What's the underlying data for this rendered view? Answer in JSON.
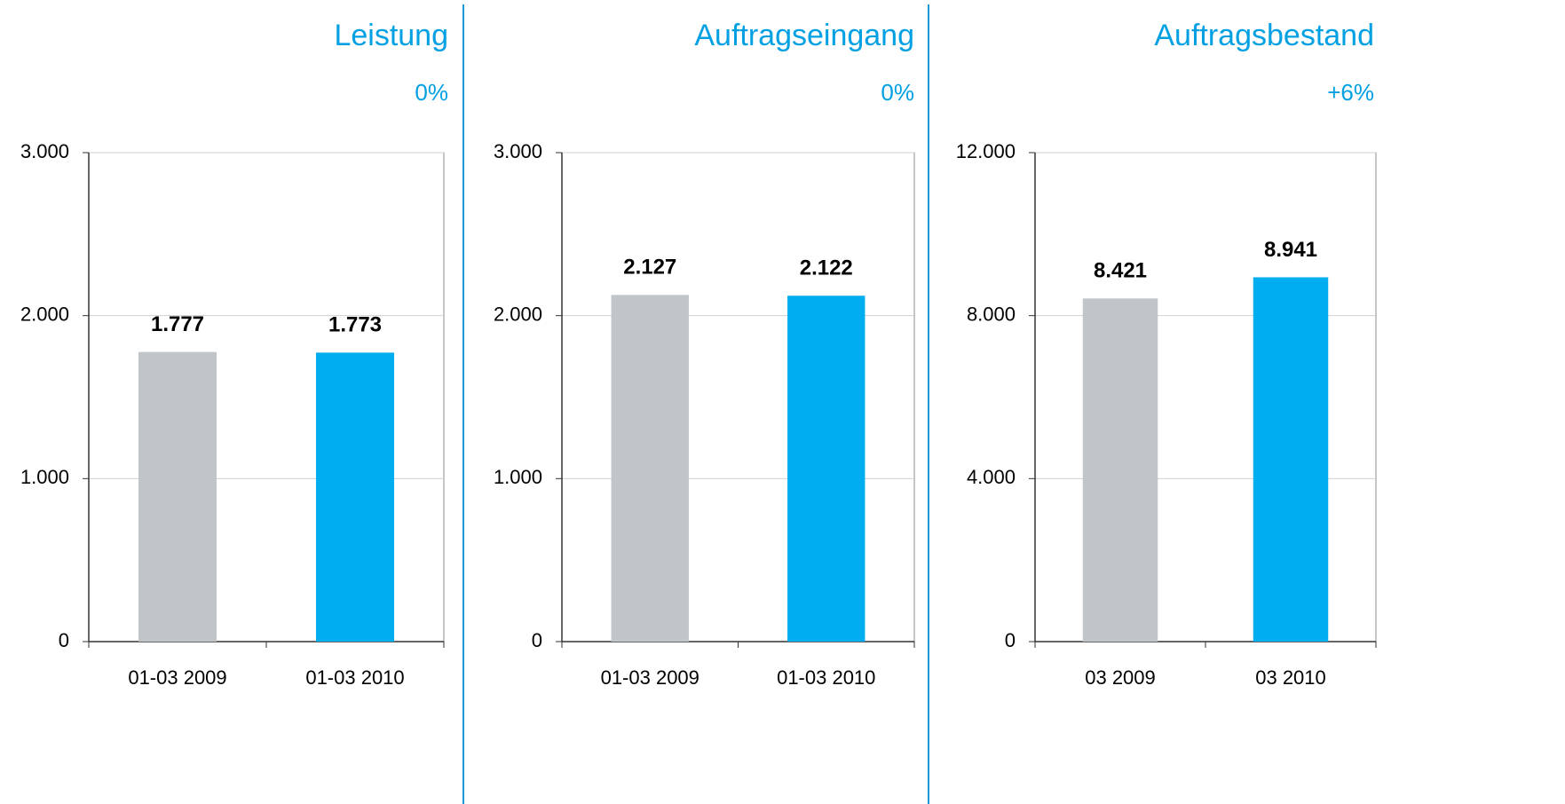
{
  "chart_data": [
    {
      "type": "bar",
      "title": "Leistung",
      "subtitle": "0%",
      "categories": [
        "01-03 2009",
        "01-03 2010"
      ],
      "values": [
        1777,
        1773
      ],
      "value_labels": [
        "1.777",
        "1.773"
      ],
      "colors": [
        "#bfc5c8",
        "#00aeef"
      ],
      "ylim": [
        0,
        3000
      ],
      "yticks": [
        0,
        {
          "value": 1000,
          "label": "1.000"
        },
        {
          "value": 2000,
          "label": "2.000"
        },
        {
          "value": 3000,
          "label": "3.000"
        }
      ],
      "grid": true
    },
    {
      "type": "bar",
      "title": "Auftragseingang",
      "subtitle": "0%",
      "categories": [
        "01-03 2009",
        "01-03 2010"
      ],
      "values": [
        2127,
        2122
      ],
      "value_labels": [
        "2.127",
        "2.122"
      ],
      "colors": [
        "#bfc5c8",
        "#00aeef"
      ],
      "ylim": [
        0,
        3000
      ],
      "yticks": [
        0,
        {
          "value": 1000,
          "label": "1.000"
        },
        {
          "value": 2000,
          "label": "2.000"
        },
        {
          "value": 3000,
          "label": "3.000"
        }
      ],
      "grid": true
    },
    {
      "type": "bar",
      "title": "Auftragsbestand",
      "subtitle": "+6%",
      "categories": [
        "03 2009",
        "03 2010"
      ],
      "values": [
        8421,
        8941
      ],
      "value_labels": [
        "8.421",
        "8.941"
      ],
      "colors": [
        "#bfc5c8",
        "#00aeef"
      ],
      "ylim": [
        0,
        12000
      ],
      "yticks": [
        0,
        {
          "value": 4000,
          "label": "4.000"
        },
        {
          "value": 8000,
          "label": "8.000"
        },
        {
          "value": 12000,
          "label": "12.000"
        }
      ],
      "grid": true
    }
  ]
}
